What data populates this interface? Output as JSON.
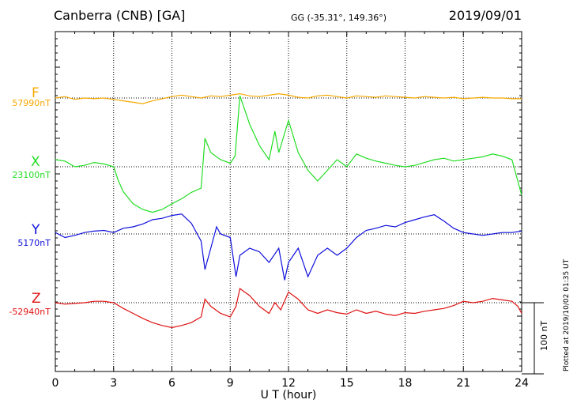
{
  "header": {
    "station": "Canberra (CNB)  [GA]",
    "coords": "GG (-35.31°, 149.36°)",
    "date": "2019/09/01"
  },
  "footer": {
    "plotted": "Plotted at 2019/10/02 01:35 UT",
    "scale_label": "100 nT"
  },
  "colors": {
    "F": "#f5a800",
    "X": "#22dd22",
    "Y": "#1010dd",
    "Z": "#e01010"
  },
  "chart_data": {
    "type": "line",
    "title": "Canberra (CNB)  [GA]",
    "xlabel": "U T (hour)",
    "xlim": [
      0,
      24
    ],
    "x_ticks": [
      "0",
      "3",
      "6",
      "9",
      "12",
      "15",
      "18",
      "21",
      "24"
    ],
    "scale_bar_nT": 100,
    "grid": true,
    "series": [
      {
        "name": "F",
        "baseline_label": "57990nT",
        "baseline": 57990,
        "points": [
          [
            0,
            57990
          ],
          [
            0.5,
            57992
          ],
          [
            1,
            57988
          ],
          [
            1.5,
            57990
          ],
          [
            2,
            57989
          ],
          [
            2.5,
            57990
          ],
          [
            3,
            57988
          ],
          [
            3.5,
            57986
          ],
          [
            4,
            57984
          ],
          [
            4.5,
            57982
          ],
          [
            5,
            57986
          ],
          [
            5.5,
            57989
          ],
          [
            6,
            57992
          ],
          [
            6.5,
            57994
          ],
          [
            7,
            57992
          ],
          [
            7.5,
            57990
          ],
          [
            8,
            57993
          ],
          [
            8.5,
            57992
          ],
          [
            9,
            57994
          ],
          [
            9.5,
            57996
          ],
          [
            10,
            57993
          ],
          [
            10.5,
            57992
          ],
          [
            11,
            57994
          ],
          [
            11.5,
            57996
          ],
          [
            12,
            57994
          ],
          [
            12.5,
            57991
          ],
          [
            13,
            57990
          ],
          [
            13.5,
            57993
          ],
          [
            14,
            57994
          ],
          [
            14.5,
            57992
          ],
          [
            15,
            57990
          ],
          [
            15.5,
            57993
          ],
          [
            16,
            57992
          ],
          [
            16.5,
            57991
          ],
          [
            17,
            57993
          ],
          [
            17.5,
            57992
          ],
          [
            18,
            57991
          ],
          [
            18.5,
            57990
          ],
          [
            19,
            57992
          ],
          [
            19.5,
            57991
          ],
          [
            20,
            57990
          ],
          [
            20.5,
            57991
          ],
          [
            21,
            57989
          ],
          [
            21.5,
            57990
          ],
          [
            22,
            57991
          ],
          [
            22.5,
            57990
          ],
          [
            23,
            57990
          ],
          [
            23.5,
            57989
          ],
          [
            24,
            57989
          ]
        ]
      },
      {
        "name": "X",
        "baseline_label": "23100nT",
        "baseline": 23100,
        "points": [
          [
            0,
            23110
          ],
          [
            0.5,
            23108
          ],
          [
            1,
            23100
          ],
          [
            1.5,
            23102
          ],
          [
            2,
            23106
          ],
          [
            2.5,
            23104
          ],
          [
            3,
            23100
          ],
          [
            3.25,
            23080
          ],
          [
            3.5,
            23065
          ],
          [
            4,
            23048
          ],
          [
            4.5,
            23040
          ],
          [
            5,
            23036
          ],
          [
            5.5,
            23040
          ],
          [
            6,
            23048
          ],
          [
            6.5,
            23055
          ],
          [
            7,
            23064
          ],
          [
            7.5,
            23070
          ],
          [
            7.7,
            23140
          ],
          [
            8,
            23120
          ],
          [
            8.5,
            23110
          ],
          [
            9,
            23105
          ],
          [
            9.25,
            23115
          ],
          [
            9.5,
            23200
          ],
          [
            10,
            23160
          ],
          [
            10.5,
            23130
          ],
          [
            11,
            23110
          ],
          [
            11.3,
            23150
          ],
          [
            11.5,
            23120
          ],
          [
            12,
            23165
          ],
          [
            12.5,
            23120
          ],
          [
            13,
            23095
          ],
          [
            13.5,
            23080
          ],
          [
            14,
            23095
          ],
          [
            14.5,
            23110
          ],
          [
            15,
            23100
          ],
          [
            15.5,
            23118
          ],
          [
            16,
            23112
          ],
          [
            16.5,
            23108
          ],
          [
            17,
            23105
          ],
          [
            17.5,
            23102
          ],
          [
            18,
            23100
          ],
          [
            18.5,
            23102
          ],
          [
            19,
            23106
          ],
          [
            19.5,
            23110
          ],
          [
            20,
            23112
          ],
          [
            20.5,
            23108
          ],
          [
            21,
            23110
          ],
          [
            21.5,
            23112
          ],
          [
            22,
            23114
          ],
          [
            22.5,
            23118
          ],
          [
            23,
            23115
          ],
          [
            23.5,
            23110
          ],
          [
            23.8,
            23080
          ],
          [
            24,
            23060
          ]
        ]
      },
      {
        "name": "Y",
        "baseline_label": "5170nT",
        "baseline": 5170,
        "points": [
          [
            0,
            5172
          ],
          [
            0.5,
            5165
          ],
          [
            1,
            5168
          ],
          [
            1.5,
            5172
          ],
          [
            2,
            5174
          ],
          [
            2.5,
            5175
          ],
          [
            3,
            5172
          ],
          [
            3.5,
            5178
          ],
          [
            4,
            5180
          ],
          [
            4.5,
            5184
          ],
          [
            5,
            5190
          ],
          [
            5.5,
            5192
          ],
          [
            6,
            5196
          ],
          [
            6.5,
            5198
          ],
          [
            7,
            5185
          ],
          [
            7.5,
            5160
          ],
          [
            7.7,
            5120
          ],
          [
            8,
            5150
          ],
          [
            8.3,
            5180
          ],
          [
            8.5,
            5170
          ],
          [
            9,
            5165
          ],
          [
            9.3,
            5110
          ],
          [
            9.5,
            5140
          ],
          [
            10,
            5150
          ],
          [
            10.5,
            5145
          ],
          [
            11,
            5130
          ],
          [
            11.5,
            5150
          ],
          [
            11.8,
            5105
          ],
          [
            12,
            5130
          ],
          [
            12.5,
            5150
          ],
          [
            13,
            5110
          ],
          [
            13.5,
            5140
          ],
          [
            14,
            5150
          ],
          [
            14.5,
            5140
          ],
          [
            15,
            5150
          ],
          [
            15.5,
            5165
          ],
          [
            16,
            5175
          ],
          [
            16.5,
            5178
          ],
          [
            17,
            5182
          ],
          [
            17.5,
            5180
          ],
          [
            18,
            5186
          ],
          [
            18.5,
            5190
          ],
          [
            19,
            5194
          ],
          [
            19.5,
            5197
          ],
          [
            20,
            5188
          ],
          [
            20.5,
            5178
          ],
          [
            21,
            5172
          ],
          [
            21.5,
            5170
          ],
          [
            22,
            5168
          ],
          [
            22.5,
            5170
          ],
          [
            23,
            5172
          ],
          [
            23.5,
            5172
          ],
          [
            24,
            5174
          ]
        ]
      },
      {
        "name": "Z",
        "baseline_label": "-52940nT",
        "baseline": -52940,
        "points": [
          [
            0,
            -52940
          ],
          [
            0.5,
            -52942
          ],
          [
            1,
            -52941
          ],
          [
            1.5,
            -52940
          ],
          [
            2,
            -52938
          ],
          [
            2.5,
            -52938
          ],
          [
            3,
            -52940
          ],
          [
            3.5,
            -52948
          ],
          [
            4,
            -52955
          ],
          [
            4.5,
            -52962
          ],
          [
            5,
            -52968
          ],
          [
            5.5,
            -52972
          ],
          [
            6,
            -52975
          ],
          [
            6.5,
            -52972
          ],
          [
            7,
            -52968
          ],
          [
            7.5,
            -52960
          ],
          [
            7.7,
            -52935
          ],
          [
            8,
            -52945
          ],
          [
            8.5,
            -52955
          ],
          [
            9,
            -52960
          ],
          [
            9.3,
            -52945
          ],
          [
            9.5,
            -52920
          ],
          [
            10,
            -52930
          ],
          [
            10.5,
            -52945
          ],
          [
            11,
            -52955
          ],
          [
            11.3,
            -52940
          ],
          [
            11.6,
            -52950
          ],
          [
            12,
            -52925
          ],
          [
            12.5,
            -52935
          ],
          [
            13,
            -52950
          ],
          [
            13.5,
            -52955
          ],
          [
            14,
            -52950
          ],
          [
            14.5,
            -52954
          ],
          [
            15,
            -52956
          ],
          [
            15.5,
            -52950
          ],
          [
            16,
            -52955
          ],
          [
            16.5,
            -52952
          ],
          [
            17,
            -52956
          ],
          [
            17.5,
            -52958
          ],
          [
            18,
            -52954
          ],
          [
            18.5,
            -52955
          ],
          [
            19,
            -52952
          ],
          [
            19.5,
            -52950
          ],
          [
            20,
            -52948
          ],
          [
            20.5,
            -52944
          ],
          [
            21,
            -52938
          ],
          [
            21.5,
            -52940
          ],
          [
            22,
            -52938
          ],
          [
            22.5,
            -52934
          ],
          [
            23,
            -52936
          ],
          [
            23.5,
            -52938
          ],
          [
            23.8,
            -52945
          ],
          [
            24,
            -52955
          ]
        ]
      }
    ]
  }
}
